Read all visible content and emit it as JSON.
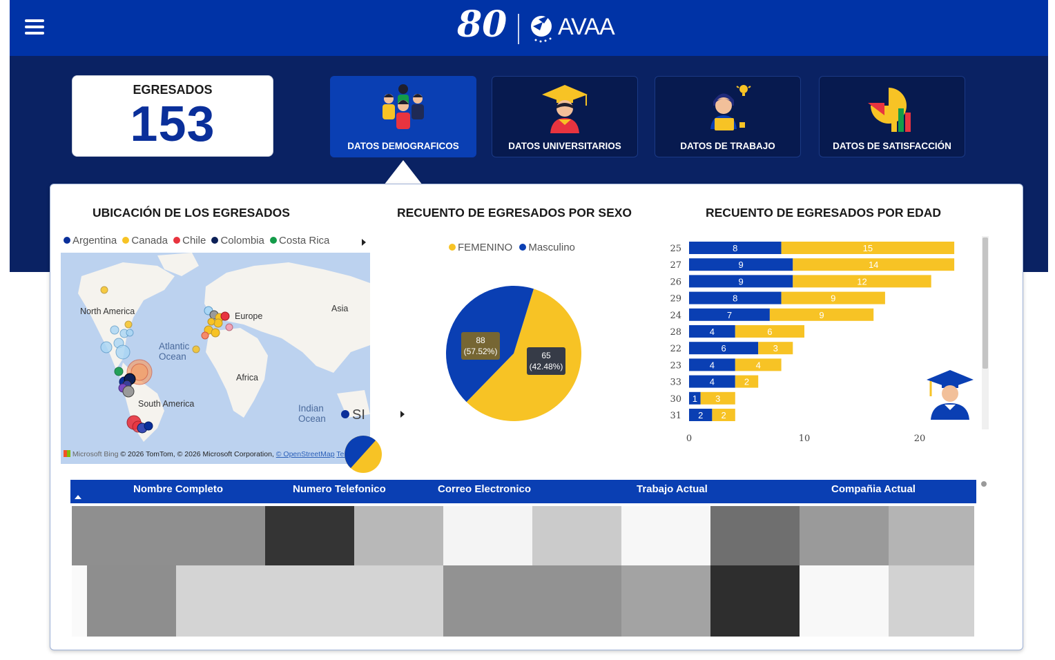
{
  "header": {
    "logo_anniversary": "80",
    "logo_brand": "AVAA"
  },
  "summary": {
    "label": "EGRESADOS",
    "value": "153"
  },
  "tabs": [
    {
      "label": "DATOS DEMOGRAFICOS",
      "icon": "people-group-icon",
      "active": true
    },
    {
      "label": "DATOS UNIVERSITARIOS",
      "icon": "graduate-icon",
      "active": false
    },
    {
      "label": "DATOS DE TRABAJO",
      "icon": "worker-laptop-icon",
      "active": false
    },
    {
      "label": "DATOS DE SATISFACCIÓN",
      "icon": "pie-bar-chart-icon",
      "active": false
    }
  ],
  "map": {
    "title": "UBICACIÓN DE LOS EGRESADOS",
    "legend": [
      {
        "name": "Argentina",
        "color": "#0a2f9a"
      },
      {
        "name": "Canada",
        "color": "#f7c325"
      },
      {
        "name": "Chile",
        "color": "#e8343f"
      },
      {
        "name": "Colombia",
        "color": "#0c2057"
      },
      {
        "name": "Costa Rica",
        "color": "#139b49"
      }
    ],
    "labels": {
      "north_america": "North America",
      "europe": "Europe",
      "asia": "Asia",
      "africa": "Africa",
      "south_america": "South America",
      "atlantic": "Atlantic Ocean",
      "indian": "Indian Ocean",
      "partial": "SI"
    },
    "credit_logo": "Microsoft Bing",
    "credit_text": "© 2026 TomTom, © 2026 Microsoft Corporation,",
    "credit_link": "© OpenStreetMap",
    "credit_terms": "Terms"
  },
  "sex_chart": {
    "title": "RECUENTO DE EGRESADOS POR SEXO",
    "chart_data": {
      "type": "pie",
      "slices": [
        {
          "name": "FEMENINO",
          "value": 88,
          "percent": "57.52%",
          "color": "#f7c325"
        },
        {
          "name": "Masculino",
          "value": 65,
          "percent": "42.48%",
          "color": "#0a3fb3"
        }
      ],
      "legend_position": "top"
    }
  },
  "age_chart": {
    "title": "RECUENTO DE EGRESADOS POR EDAD",
    "chart_data": {
      "type": "bar",
      "orientation": "horizontal",
      "stacked": true,
      "categories": [
        "25",
        "27",
        "26",
        "29",
        "24",
        "28",
        "22",
        "23",
        "33",
        "30",
        "31"
      ],
      "series": [
        {
          "values": [
            8,
            9,
            9,
            8,
            7,
            4,
            6,
            4,
            4,
            1,
            2
          ],
          "color": "#0a3fb3"
        },
        {
          "values": [
            15,
            14,
            12,
            9,
            9,
            6,
            3,
            4,
            2,
            3,
            2
          ],
          "color": "#f7c325"
        }
      ],
      "x_ticks": [
        "0",
        "10",
        "20"
      ],
      "xlim": [
        0,
        25
      ],
      "grid": false
    }
  },
  "table": {
    "columns": [
      "Nombre Completo",
      "Numero Telefonico",
      "Correo Electronico",
      "Trabajo Actual",
      "Compañia Actual"
    ]
  },
  "colors": {
    "primary": "#0033a6",
    "dark": "#0a2263",
    "yellow": "#f7c325",
    "blue": "#0a3fb3"
  }
}
